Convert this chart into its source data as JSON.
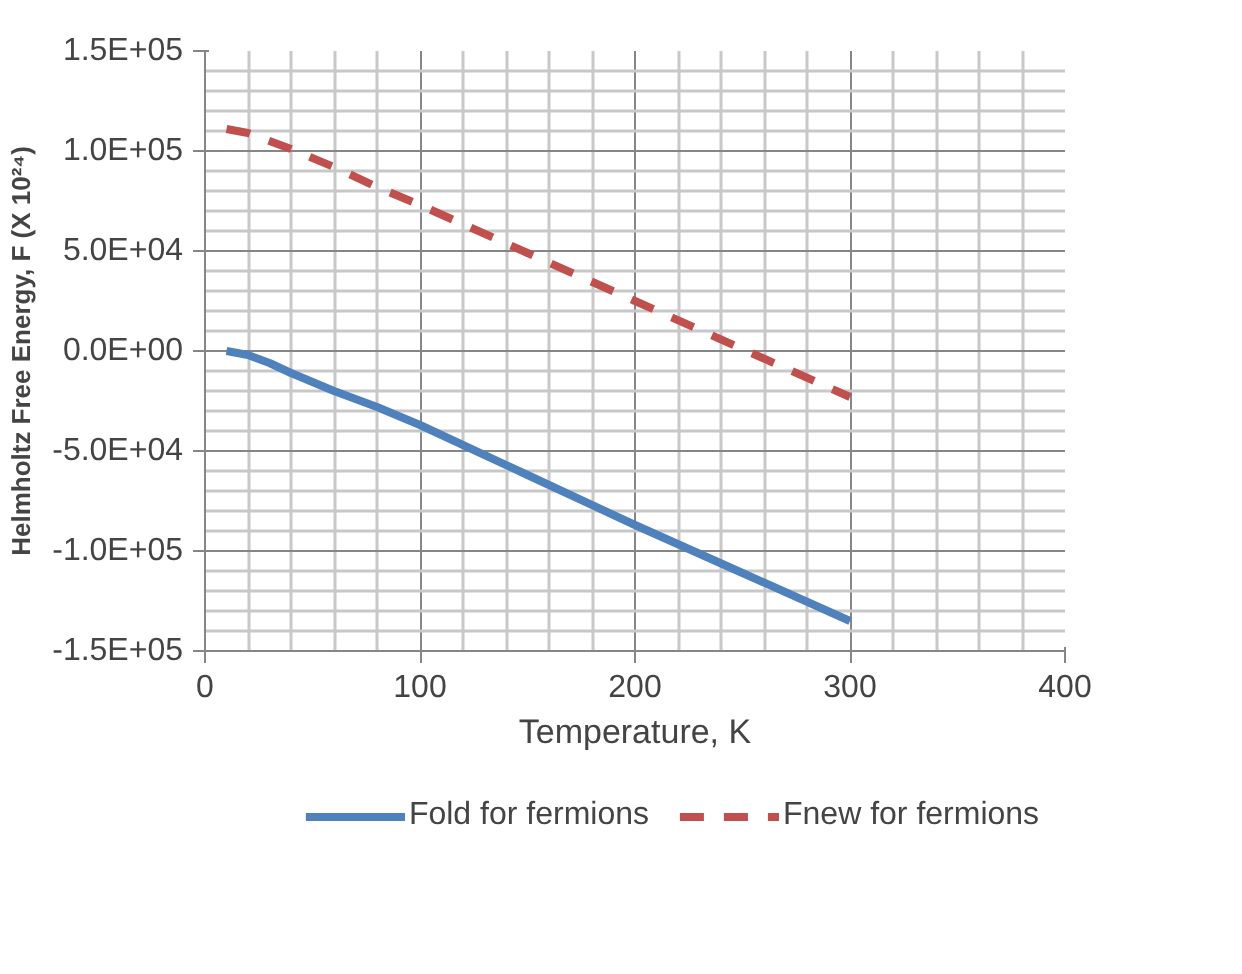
{
  "chart_data": {
    "type": "line",
    "xlabel": "Temperature, K",
    "ylabel": "Helmholtz Free Energy, F (X 10²⁴)",
    "x": [
      10,
      20,
      30,
      40,
      60,
      80,
      100,
      150,
      200,
      250,
      300
    ],
    "series": [
      {
        "name": "Fold for fermions",
        "color": "#4f81bd",
        "line_style": "solid",
        "values": [
          0,
          -2000,
          -6000,
          -11000,
          -20000,
          -28000,
          -37000,
          -62000,
          -87000,
          -111000,
          -135000
        ]
      },
      {
        "name": "Fnew for fermions",
        "color": "#c0504d",
        "line_style": "dashed",
        "values": [
          111000,
          109000,
          105000,
          101000,
          92000,
          82000,
          73000,
          49000,
          25000,
          1000,
          -23000
        ]
      }
    ],
    "xlim": [
      0,
      400
    ],
    "xticks": [
      0,
      100,
      200,
      300,
      400
    ],
    "ylim": [
      -150000,
      150000
    ],
    "yticks": [
      {
        "value": -150000,
        "label": "-1.5E+05"
      },
      {
        "value": -100000,
        "label": "-1.0E+05"
      },
      {
        "value": -50000,
        "label": "-5.0E+04"
      },
      {
        "value": 0,
        "label": "0.0E+00"
      },
      {
        "value": 50000,
        "label": "5.0E+04"
      },
      {
        "value": 100000,
        "label": "1.0E+05"
      },
      {
        "value": 150000,
        "label": "1.5E+05"
      }
    ],
    "grid": true,
    "legend": "bottom"
  }
}
